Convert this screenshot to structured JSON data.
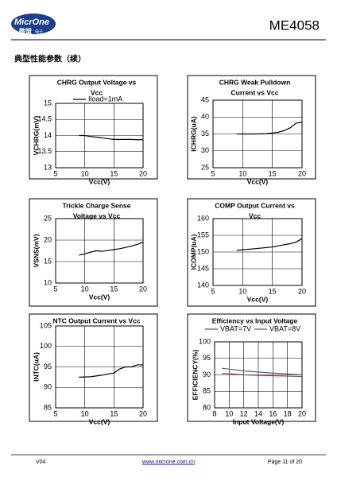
{
  "header": {
    "logo_name": "MicrOne",
    "logo_cn": "微盟",
    "logo_cn_small": "电子",
    "part": "ME4058"
  },
  "section_title": "典型性能参数（续）",
  "chart_data": [
    {
      "type": "line",
      "title": [
        "CHRG Output Voltage vs",
        "Vcc"
      ],
      "x_label": "Vcc(V)",
      "y_label": "VCHRG(mV)",
      "x": [
        9,
        10,
        11,
        12,
        13,
        14,
        15,
        16,
        17,
        18,
        19,
        20
      ],
      "series": [
        {
          "name": "Iload=1mA",
          "color": "#000000",
          "values": [
            14.0,
            14.0,
            13.97,
            13.95,
            13.93,
            13.9,
            13.88,
            13.88,
            13.88,
            13.88,
            13.87,
            13.87
          ]
        }
      ],
      "xlim": [
        5,
        20
      ],
      "xticks": [
        5,
        10,
        15,
        20
      ],
      "ylim": [
        13,
        15
      ],
      "yticks": [
        13,
        13.5,
        14,
        14.5,
        15
      ],
      "grid": true,
      "legend": true
    },
    {
      "type": "line",
      "title": [
        "CHRG Weak Pulldown",
        "Current vs Vcc"
      ],
      "x_label": "Vcc(V)",
      "y_label": "ICHRG(uA)",
      "x": [
        9,
        12,
        14,
        16,
        17,
        18,
        19,
        20
      ],
      "series": [
        {
          "name": "ICHRG",
          "color": "#000000",
          "values": [
            35,
            35,
            35.1,
            35.5,
            36,
            36.8,
            38.2,
            38.5
          ]
        }
      ],
      "xlim": [
        5,
        20
      ],
      "xticks": [
        5,
        10,
        15,
        20
      ],
      "ylim": [
        25,
        45
      ],
      "yticks": [
        25,
        30,
        35,
        40,
        45
      ],
      "grid": true,
      "legend": false
    },
    {
      "type": "line",
      "title": [
        "Trickle Charge Sense",
        "Voltage vs Vcc"
      ],
      "x_label": "Vcc(V)",
      "y_label": "VSNS(mV)",
      "x": [
        9,
        10,
        11,
        12,
        13,
        14,
        15,
        16,
        17,
        18,
        19,
        20
      ],
      "series": [
        {
          "name": "VSNS",
          "color": "#000000",
          "values": [
            16.5,
            16.8,
            17.2,
            17.5,
            17.4,
            17.6,
            17.8,
            18,
            18.3,
            18.6,
            19,
            19.5
          ]
        }
      ],
      "xlim": [
        5,
        20
      ],
      "xticks": [
        5,
        10,
        15,
        20
      ],
      "ylim": [
        10,
        25
      ],
      "yticks": [
        10,
        15,
        20,
        25
      ],
      "grid": true,
      "legend": false
    },
    {
      "type": "line",
      "title": [
        "COMP Output Current vs",
        "Vcc"
      ],
      "x_label": "Vcc(V)",
      "y_label": "ICOMP(uA)",
      "x": [
        9,
        12,
        15,
        18,
        19,
        20
      ],
      "series": [
        {
          "name": "ICOMP",
          "color": "#000000",
          "values": [
            150.5,
            151,
            151.5,
            152.5,
            153,
            154
          ]
        }
      ],
      "xlim": [
        5,
        20
      ],
      "xticks": [
        5,
        10,
        15,
        20
      ],
      "ylim": [
        140,
        160
      ],
      "yticks": [
        140,
        145,
        150,
        155,
        160
      ],
      "grid": true,
      "legend": false
    },
    {
      "type": "line",
      "title": [
        "NTC Output Current vs Vcc"
      ],
      "x_label": "Vcc(V)",
      "y_label": "INTC(uA)",
      "x": [
        9,
        11,
        13,
        15,
        16,
        17,
        18,
        19,
        20
      ],
      "series": [
        {
          "name": "INTC",
          "color": "#000000",
          "values": [
            92.5,
            92.6,
            93,
            93.5,
            94.5,
            95,
            95,
            95.5,
            95.5
          ]
        }
      ],
      "xlim": [
        5,
        20
      ],
      "xticks": [
        5,
        10,
        15,
        20
      ],
      "ylim": [
        85,
        105
      ],
      "yticks": [
        85,
        90,
        95,
        100,
        105
      ],
      "grid": true,
      "legend": false
    },
    {
      "type": "line",
      "title": [
        "Efficiency vs Input Voltage"
      ],
      "x_label": "Input Voltage(V)",
      "y_label": "EFFICIENCY(%)",
      "x": [
        9,
        12,
        15,
        20
      ],
      "series": [
        {
          "name": "VBAT=7V",
          "color": "#a0335a",
          "values": [
            90.5,
            90,
            89.8,
            89.5
          ]
        },
        {
          "name": "VBAT=8V",
          "color": "#55607a",
          "values": [
            92,
            91.2,
            90.7,
            90
          ]
        }
      ],
      "xlim": [
        8,
        20
      ],
      "xticks": [
        8,
        10,
        12,
        14,
        16,
        18,
        20
      ],
      "ylim": [
        80,
        100
      ],
      "yticks": [
        80,
        85,
        90,
        95,
        100
      ],
      "grid": true,
      "legend": true
    }
  ],
  "footer": {
    "version": "V04",
    "url": "www.microne.com.cn",
    "page": "Page 11 of 20"
  }
}
